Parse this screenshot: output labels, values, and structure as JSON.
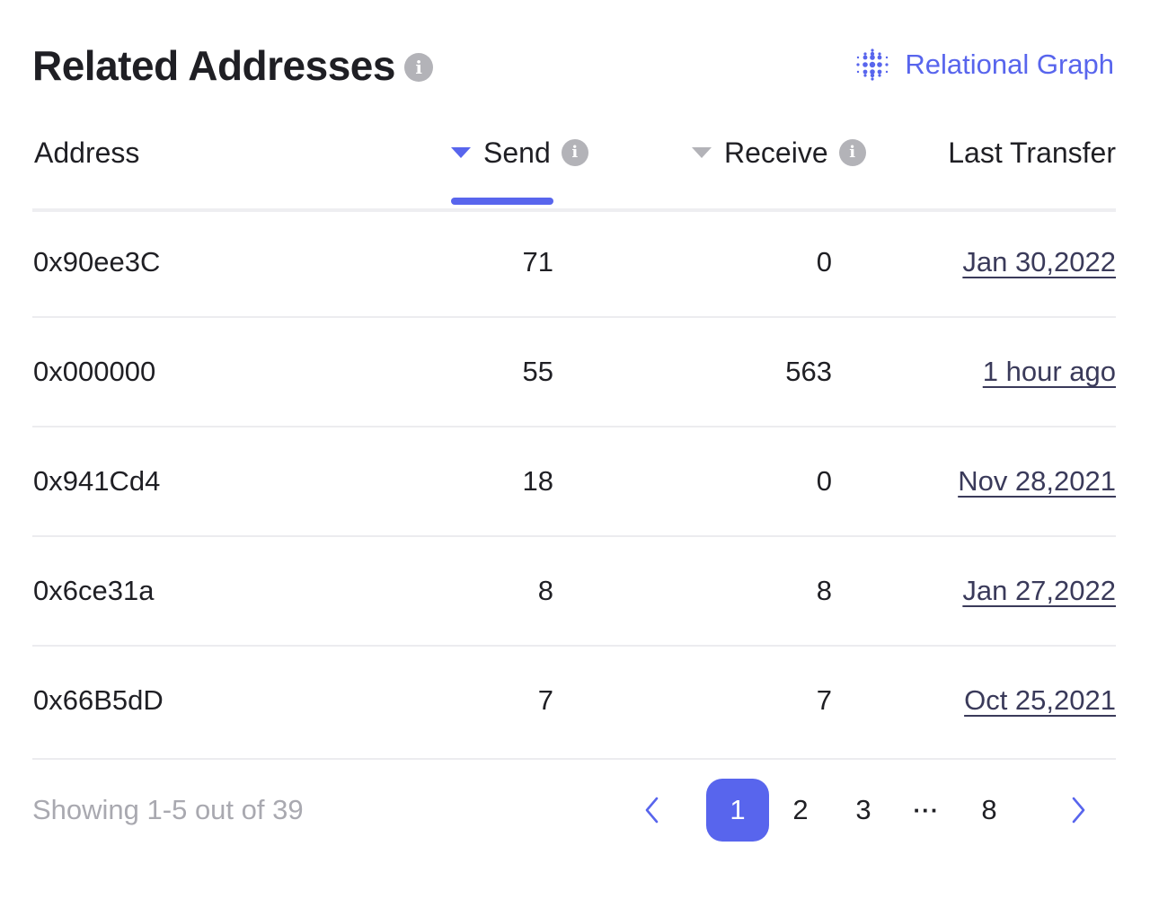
{
  "header": {
    "title": "Related Addresses",
    "graph_link_label": "Relational Graph"
  },
  "colors": {
    "accent": "#5865ed",
    "muted": "#b3b3b8"
  },
  "table": {
    "columns": {
      "address": "Address",
      "send": "Send",
      "receive": "Receive",
      "last_transfer": "Last Transfer"
    },
    "sorted_by": "send",
    "rows": [
      {
        "address": "0x90ee3C",
        "send": "71",
        "receive": "0",
        "last_transfer": "Jan 30,2022"
      },
      {
        "address": "0x000000",
        "send": "55",
        "receive": "563",
        "last_transfer": "1 hour ago"
      },
      {
        "address": "0x941Cd4",
        "send": "18",
        "receive": "0",
        "last_transfer": "Nov 28,2021"
      },
      {
        "address": "0x6ce31a",
        "send": "8",
        "receive": "8",
        "last_transfer": "Jan 27,2022"
      },
      {
        "address": "0x66B5dD",
        "send": "7",
        "receive": "7",
        "last_transfer": "Oct 25,2021"
      }
    ]
  },
  "pagination": {
    "showing": "Showing 1-5 out of 39",
    "pages": [
      "1",
      "2",
      "3",
      "8"
    ],
    "ellipsis": "···",
    "current_page": "1"
  },
  "icons": {
    "title_info": "info-icon",
    "graph": "dot-grid-icon",
    "sort_active": "caret-down-icon",
    "sort_inactive": "caret-down-icon",
    "prev": "chevron-left-icon",
    "next": "chevron-right-icon"
  }
}
